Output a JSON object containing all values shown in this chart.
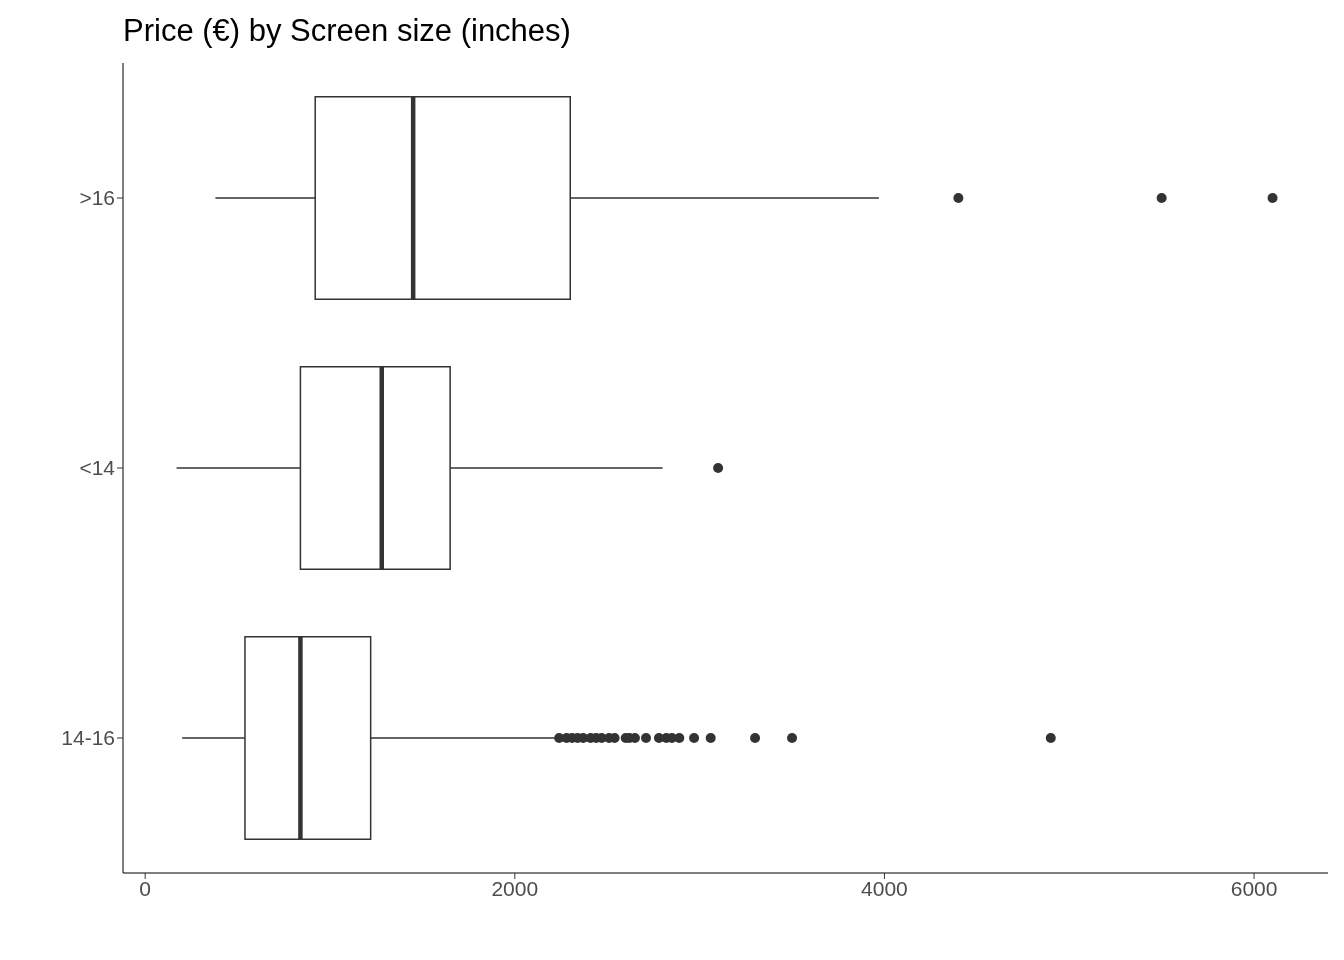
{
  "chart_data": {
    "type": "box",
    "title": "Price (€) by Screen size (inches)",
    "orientation": "horizontal",
    "categories": [
      ">16",
      "<14",
      "14-16"
    ],
    "color": "#333333",
    "boxes": [
      {
        "low": 380,
        "q1": 920,
        "median": 1450,
        "q3": 2300,
        "high": 3970,
        "outliers": [
          4400,
          5500,
          6100
        ]
      },
      {
        "low": 170,
        "q1": 840,
        "median": 1280,
        "q3": 1650,
        "high": 2800,
        "outliers": [
          3100
        ]
      },
      {
        "low": 200,
        "q1": 540,
        "median": 840,
        "q3": 1220,
        "high": 2220,
        "outliers": [
          2240,
          2280,
          2310,
          2340,
          2370,
          2410,
          2440,
          2470,
          2510,
          2540,
          2600,
          2620,
          2650,
          2710,
          2780,
          2820,
          2850,
          2890,
          2970,
          3060,
          3300,
          3500,
          4900
        ]
      }
    ],
    "xlim": [
      -120,
      6400
    ],
    "xticks": [
      0,
      2000,
      4000,
      6000
    ],
    "grid": false
  }
}
